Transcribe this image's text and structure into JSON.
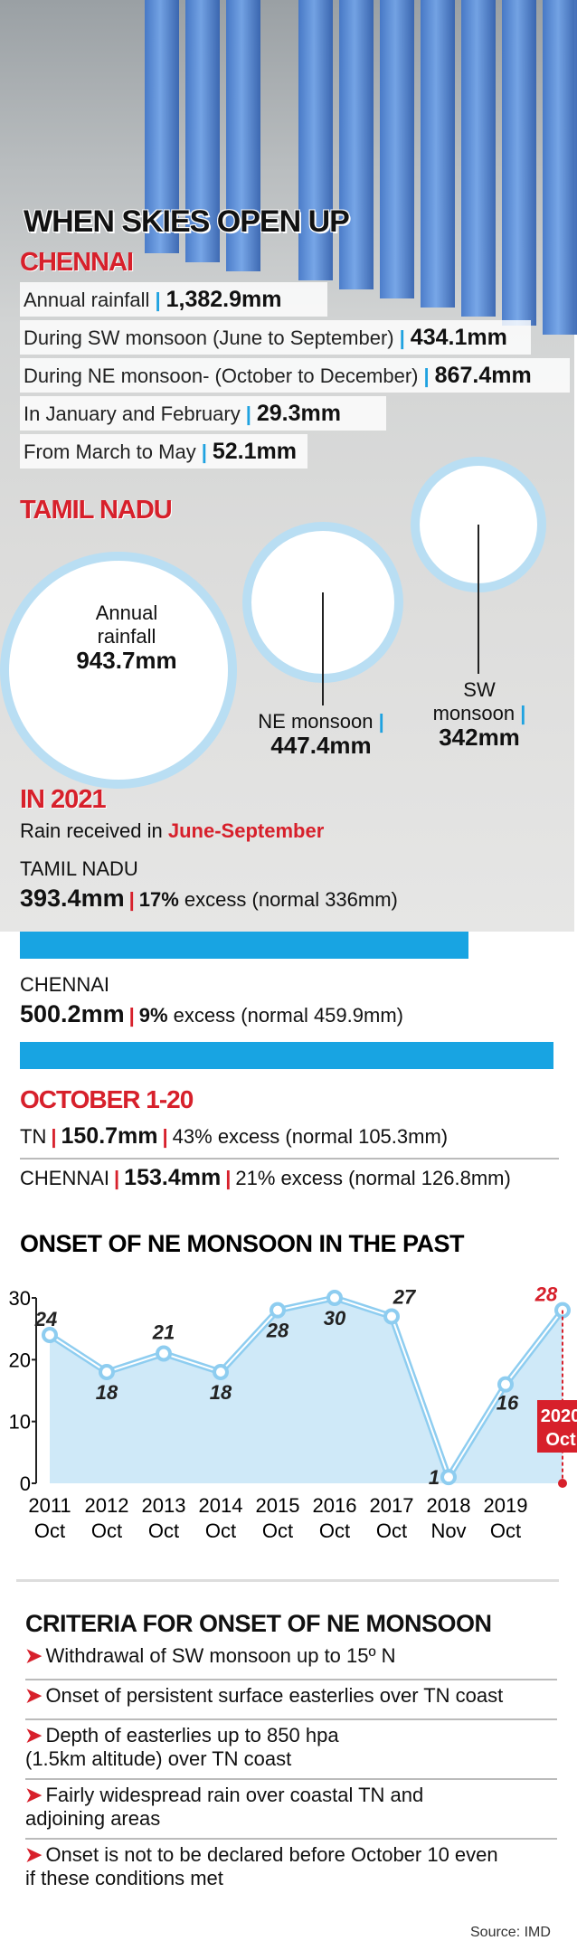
{
  "header": {
    "title": "WHEN SKIES OPEN UP"
  },
  "chennai": {
    "heading": "CHENNAI",
    "rows": [
      {
        "label": "Annual rainfall",
        "value": "1,382.9mm"
      },
      {
        "label": "During SW monsoon (June to September)",
        "value": "434.1mm"
      },
      {
        "label": "During NE monsoon- (October to December)",
        "value": "867.4mm"
      },
      {
        "label": "In January and February",
        "value": "29.3mm"
      },
      {
        "label": "From March to May",
        "value": "52.1mm"
      }
    ]
  },
  "tamil_nadu": {
    "heading": "TAMIL NADU",
    "annual": {
      "label_1": "Annual",
      "label_2": "rainfall",
      "value": "943.7mm"
    },
    "ne": {
      "label": "NE monsoon",
      "value": "447.4mm"
    },
    "sw": {
      "label_1": "SW",
      "label_2": "monsoon",
      "value": "342mm"
    }
  },
  "in_2021": {
    "heading": "IN 2021",
    "subtitle_prefix": "Rain received in ",
    "subtitle_period": "June-September",
    "tn_label": "TAMIL NADU",
    "tn_value": "393.4mm",
    "tn_excess": "17%",
    "tn_excess_text": "excess (normal 336mm)",
    "tn_bar_fraction": 0.84,
    "ch_label": "CHENNAI",
    "ch_value": "500.2mm",
    "ch_excess": "9%",
    "ch_excess_text": "excess (normal 459.9mm)",
    "ch_bar_fraction": 1.0
  },
  "october": {
    "heading": "OCTOBER 1-20",
    "tn_label": "TN",
    "tn_value": "150.7mm",
    "tn_excess": "43% excess (normal 105.3mm)",
    "ch_label": "CHENNAI",
    "ch_value": "153.4mm",
    "ch_excess": "21% excess (normal 126.8mm)"
  },
  "chart_data": {
    "type": "line",
    "title": "ONSET OF NE MONSOON IN THE PAST",
    "xlabel": "",
    "ylabel": "",
    "ylim": [
      0,
      30
    ],
    "yticks": [
      "0",
      "10",
      "20",
      "30"
    ],
    "x": [
      {
        "year": "2011",
        "month": "Oct"
      },
      {
        "year": "2012",
        "month": "Oct"
      },
      {
        "year": "2013",
        "month": "Oct"
      },
      {
        "year": "2014",
        "month": "Oct"
      },
      {
        "year": "2015",
        "month": "Oct"
      },
      {
        "year": "2016",
        "month": "Oct"
      },
      {
        "year": "2017",
        "month": "Oct"
      },
      {
        "year": "2018",
        "month": "Nov"
      },
      {
        "year": "2019",
        "month": "Oct"
      },
      {
        "year": "2020",
        "month": "Oct"
      }
    ],
    "values": [
      24,
      18,
      21,
      18,
      28,
      30,
      27,
      1,
      16,
      28
    ],
    "point_labels": [
      "24",
      "18",
      "21",
      "18",
      "28",
      "30",
      "27",
      "1",
      "16",
      "28"
    ],
    "highlight_label_year": "2020",
    "highlight_label_month": "Oct",
    "colors": {
      "line": "#8ecdf0",
      "fill": "#cfe9f8",
      "highlight": "#d7202b"
    },
    "grid": false
  },
  "criteria": {
    "title": "CRITERIA FOR ONSET OF NE MONSOON",
    "items": [
      {
        "line_1": "Withdrawal of SW monsoon up to 15º N",
        "line_2": ""
      },
      {
        "line_1": "Onset of persistent surface easterlies over TN coast",
        "line_2": ""
      },
      {
        "line_1": "Depth of easterlies up to 850 hpa",
        "line_2": "(1.5km altitude) over TN coast"
      },
      {
        "line_1": "Fairly widespread rain over coastal TN and",
        "line_2": "adjoining areas"
      },
      {
        "line_1": "Onset is not to be declared before October 10 even",
        "line_2": "if these conditions met"
      }
    ],
    "source": "Source: IMD"
  }
}
